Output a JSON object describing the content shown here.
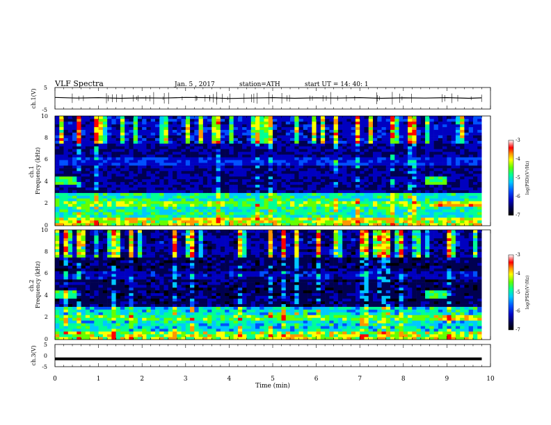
{
  "header": {
    "title": "VLF  Spectra",
    "date": "Jan.  5  , 2017",
    "station": "station=ATH",
    "start_ut": "start  UT  =    14: 40: 1"
  },
  "chart_data": [
    {
      "type": "line",
      "panel": "ch1-waveform",
      "ylabel": "ch.1(V)",
      "ylim": [
        -5,
        5
      ],
      "yticks": [
        5,
        -5
      ],
      "xlim": [
        0,
        10
      ],
      "x": [
        0,
        0.5,
        1,
        1.5,
        2,
        2.5,
        3,
        3.5,
        4,
        4.5,
        5,
        5.5,
        6,
        6.5,
        7,
        7.5,
        8,
        8.5,
        9,
        9.5,
        9.8
      ],
      "values": [
        0.4,
        0.1,
        0.3,
        0.0,
        0.2,
        0.1,
        0.4,
        0.3,
        -0.1,
        0.1,
        0.3,
        0.0,
        0.2,
        0.1,
        0.3,
        0.0,
        0.2,
        0.1,
        0.3,
        0.0,
        0.2
      ]
    },
    {
      "type": "heatmap",
      "panel": "ch1-spectrogram",
      "ylabel": "ch.1\nFrequency  (kHz)",
      "ylim": [
        0,
        10
      ],
      "yticks": [
        0,
        2,
        4,
        6,
        8,
        10
      ],
      "xlim": [
        0,
        10
      ],
      "data_end_min": 9.8,
      "colorbar": {
        "label": "log(PSD)(V²/Hz)",
        "range": [
          -7,
          -3
        ],
        "ticks": [
          "-3",
          "-4",
          "-5",
          "-6",
          "-7"
        ]
      }
    },
    {
      "type": "heatmap",
      "panel": "ch2-spectrogram",
      "ylabel": "ch.2\nFrequency  (kHz)",
      "ylim": [
        0,
        10
      ],
      "yticks": [
        0,
        2,
        4,
        6,
        8,
        10
      ],
      "xlim": [
        0,
        10
      ],
      "data_end_min": 9.8,
      "colorbar": {
        "label": "log(PSD)(V²/Hz)",
        "range": [
          -7,
          -3
        ],
        "ticks": [
          "-3",
          "-4",
          "-5",
          "-6",
          "-7"
        ]
      }
    },
    {
      "type": "line",
      "panel": "ch3-waveform",
      "ylabel": "ch.3(V)",
      "ylim": [
        -5,
        5
      ],
      "yticks": [
        5,
        0,
        -5
      ],
      "xlim": [
        0,
        10
      ],
      "x": [
        0,
        9.8
      ],
      "values": [
        -1.5,
        -1.5
      ]
    }
  ],
  "xaxis": {
    "label": "Time  (min)",
    "ticks": [
      "0",
      "1",
      "2",
      "3",
      "4",
      "5",
      "6",
      "7",
      "8",
      "9",
      "10"
    ]
  },
  "colors": {
    "colormap": [
      "#000000",
      "#000050",
      "#0000c0",
      "#0050ff",
      "#00c8ff",
      "#00ff96",
      "#64ff00",
      "#ffff00",
      "#ff9600",
      "#ff0000",
      "#ffffff"
    ]
  }
}
